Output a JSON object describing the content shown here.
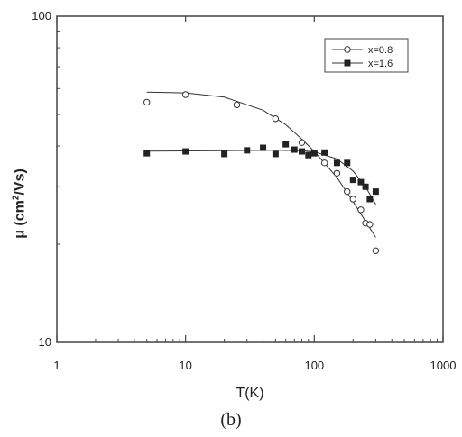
{
  "chart_data": {
    "type": "scatter",
    "title": "",
    "xlabel": "T(K)",
    "ylabel": {
      "prefix": "μ (cm",
      "sup": "2",
      "suffix": "/Vs)"
    },
    "xscale": "log",
    "yscale": "log",
    "xlim": [
      1,
      1000
    ],
    "ylim": [
      10,
      100
    ],
    "x_ticks": [
      "1",
      "10",
      "100",
      "1000"
    ],
    "y_ticks": [
      "10",
      "100"
    ],
    "grid": false,
    "legend_position": "top-right",
    "series": [
      {
        "name": "x=0.8",
        "marker": "open-circle",
        "points": [
          [
            5,
            54.5
          ],
          [
            10,
            57.5
          ],
          [
            25,
            53.5
          ],
          [
            50,
            48.5
          ],
          [
            80,
            41
          ],
          [
            120,
            35.5
          ],
          [
            150,
            33
          ],
          [
            180,
            29
          ],
          [
            200,
            27.5
          ],
          [
            230,
            25.5
          ],
          [
            250,
            23.2
          ],
          [
            270,
            23
          ],
          [
            300,
            19.1
          ]
        ],
        "fit_curve": [
          [
            5,
            58.5
          ],
          [
            10,
            58.2
          ],
          [
            20,
            56.5
          ],
          [
            40,
            51.5
          ],
          [
            60,
            46.5
          ],
          [
            80,
            42
          ],
          [
            100,
            38.5
          ],
          [
            150,
            32
          ],
          [
            200,
            27
          ],
          [
            250,
            23.5
          ],
          [
            300,
            21
          ]
        ]
      },
      {
        "name": "x=1.6",
        "marker": "filled-square",
        "points": [
          [
            5,
            38
          ],
          [
            10,
            38.5
          ],
          [
            20,
            37.8
          ],
          [
            30,
            38.8
          ],
          [
            40,
            39.5
          ],
          [
            50,
            37.8
          ],
          [
            60,
            40.5
          ],
          [
            70,
            39
          ],
          [
            80,
            38.5
          ],
          [
            90,
            37.5
          ],
          [
            100,
            38
          ],
          [
            120,
            38.2
          ],
          [
            150,
            35.5
          ],
          [
            180,
            35.5
          ],
          [
            200,
            31.5
          ],
          [
            230,
            31
          ],
          [
            250,
            30
          ],
          [
            270,
            27.5
          ],
          [
            300,
            29
          ]
        ],
        "fit_curve": [
          [
            5,
            38.6
          ],
          [
            20,
            38.7
          ],
          [
            50,
            38.8
          ],
          [
            80,
            38.7
          ],
          [
            100,
            38.4
          ],
          [
            150,
            36.5
          ],
          [
            200,
            33.5
          ],
          [
            250,
            30
          ],
          [
            300,
            26.5
          ]
        ]
      }
    ]
  },
  "caption": "(b)"
}
